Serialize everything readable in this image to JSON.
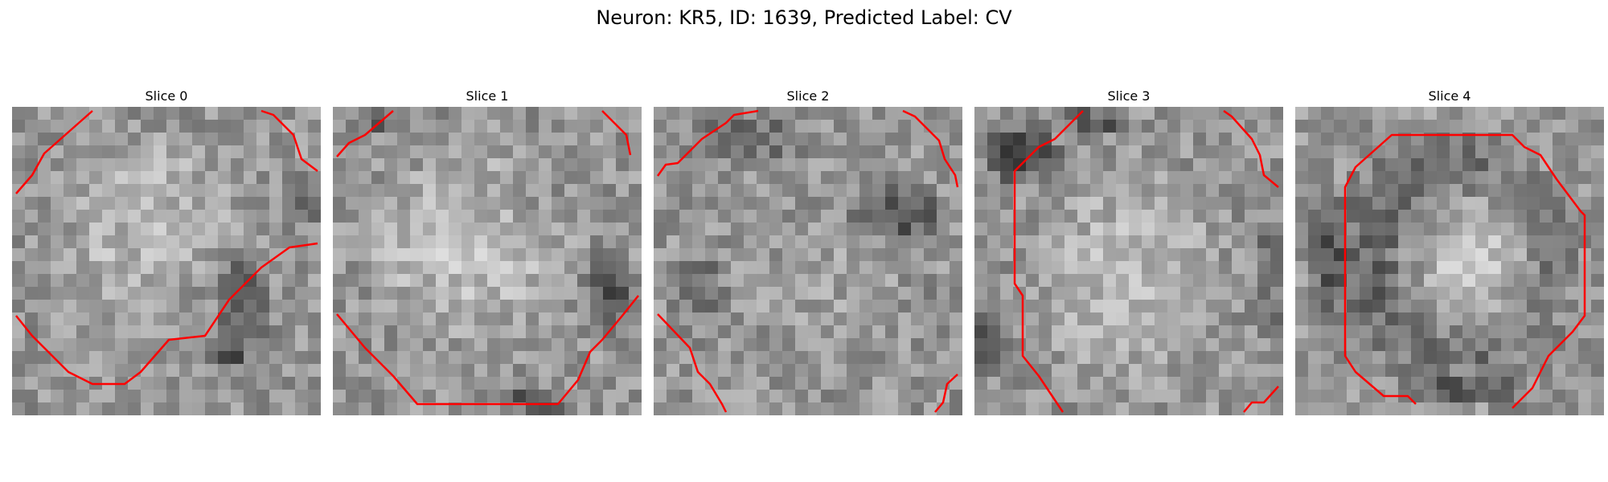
{
  "figure": {
    "title": "Neuron: KR5, ID: 1639, Predicted Label: CV"
  },
  "slices": [
    {
      "label": "Slice 0",
      "contour_color": "#ff0000"
    },
    {
      "label": "Slice 1",
      "contour_color": "#ff0000"
    },
    {
      "label": "Slice 2",
      "contour_color": "#ff0000"
    },
    {
      "label": "Slice 3",
      "contour_color": "#ff0000"
    },
    {
      "label": "Slice 4",
      "contour_color": "#ff0000"
    }
  ]
}
